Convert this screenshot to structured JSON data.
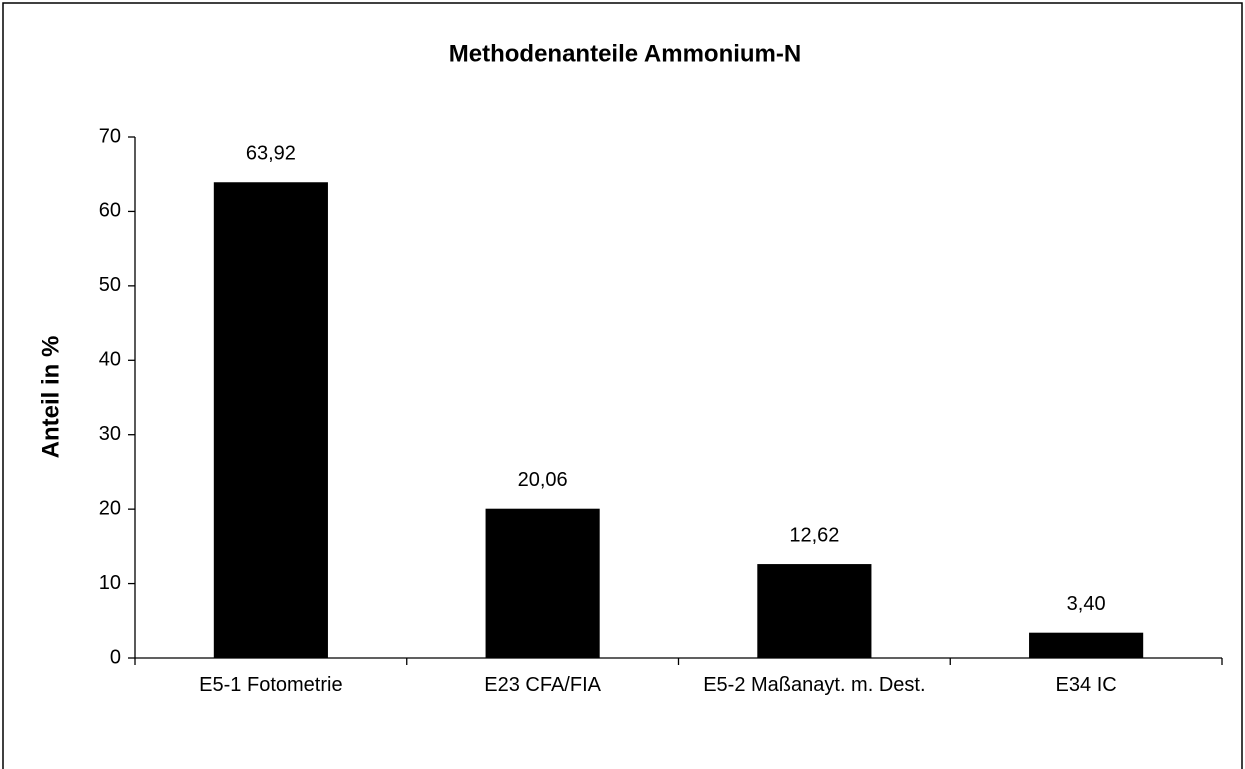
{
  "chart_data": {
    "type": "bar",
    "title": "Methodenanteile Ammonium-N",
    "y_label": "Anteil in %",
    "categories": [
      "E5-1 Fotometrie",
      "E23 CFA/FIA",
      "E5-2 Maßanayt. m. Dest.",
      "E34 IC"
    ],
    "values": [
      63.92,
      20.06,
      12.62,
      3.4
    ],
    "value_labels": [
      "63,92",
      "20,06",
      "12,62",
      "3,40"
    ],
    "color": "#000000",
    "ylim": [
      0,
      70
    ],
    "yticks": [
      0,
      10,
      20,
      30,
      40,
      50,
      60,
      70
    ],
    "grid": false
  }
}
